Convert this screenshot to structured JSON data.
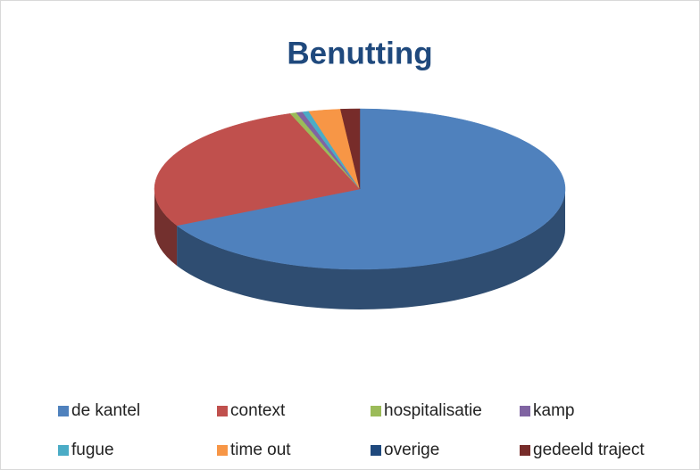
{
  "chart_data": {
    "type": "pie",
    "title": "Benutting",
    "categories": [
      "de kantel",
      "context",
      "hospitalisatie",
      "kamp",
      "fugue",
      "time out",
      "overige",
      "gedeeld traject"
    ],
    "values": [
      67.5,
      27,
      0.5,
      0.5,
      0.5,
      2.5,
      0,
      1.5
    ],
    "colors": [
      "#4f81bd",
      "#c0504d",
      "#9bbb59",
      "#8064a2",
      "#4bacc6",
      "#f79646",
      "#1f497d",
      "#772c2a"
    ],
    "legend": "bottom"
  }
}
